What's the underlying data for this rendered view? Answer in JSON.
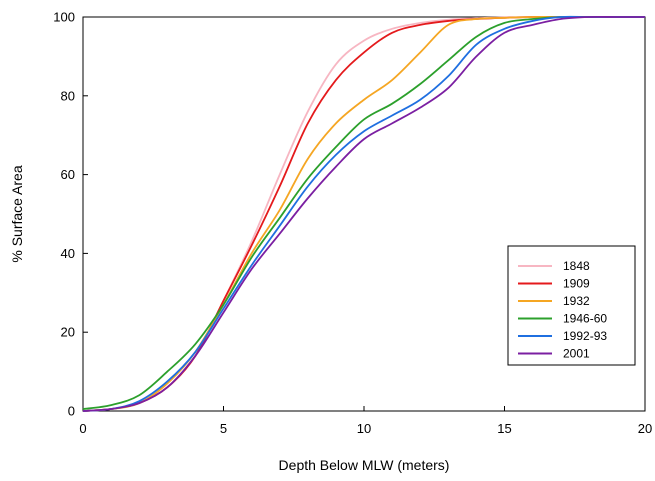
{
  "chart_data": {
    "type": "line",
    "title": "",
    "xlabel": "Depth Below MLW (meters)",
    "ylabel": "% Surface Area",
    "xlim": [
      0,
      20
    ],
    "ylim": [
      0,
      100
    ],
    "xticks": [
      0,
      5,
      10,
      15,
      20
    ],
    "yticks": [
      0,
      20,
      40,
      60,
      80,
      100
    ],
    "grid": false,
    "legend_position": "bottom-right",
    "series": [
      {
        "name": "1848",
        "color": "#f7b6c2",
        "x": [
          0,
          1,
          2,
          3,
          4,
          5,
          6,
          7,
          8,
          9,
          10,
          11,
          12,
          13,
          14,
          15,
          16,
          17,
          18,
          19,
          20
        ],
        "y": [
          0,
          0.5,
          2,
          6,
          14,
          28,
          43,
          60,
          76,
          88,
          94,
          97,
          98.5,
          99.3,
          99.7,
          99.9,
          100,
          100,
          100,
          100,
          100
        ]
      },
      {
        "name": "1909",
        "color": "#e41a1c",
        "x": [
          0,
          1,
          2,
          3,
          4,
          5,
          6,
          7,
          8,
          9,
          10,
          11,
          12,
          13,
          14,
          15,
          16,
          17,
          18,
          19,
          20
        ],
        "y": [
          0,
          0.5,
          2,
          6,
          14,
          28,
          42,
          57,
          73,
          84,
          91,
          96,
          98,
          99,
          99.5,
          99.8,
          100,
          100,
          100,
          100,
          100
        ]
      },
      {
        "name": "1932",
        "color": "#f5a623",
        "x": [
          0,
          1,
          2,
          3,
          4,
          5,
          6,
          7,
          8,
          9,
          10,
          11,
          12,
          13,
          14,
          15,
          16,
          17,
          18,
          19,
          20
        ],
        "y": [
          0,
          0.5,
          2,
          7,
          15,
          27,
          40,
          51,
          64,
          73,
          79,
          84,
          91,
          98,
          99.5,
          99.8,
          100,
          100,
          100,
          100,
          100
        ]
      },
      {
        "name": "1946-60",
        "color": "#2ca02c",
        "x": [
          0,
          1,
          2,
          3,
          4,
          5,
          6,
          7,
          8,
          9,
          10,
          11,
          12,
          13,
          14,
          15,
          16,
          17,
          18,
          19,
          20
        ],
        "y": [
          0.5,
          1.5,
          4,
          10,
          17,
          27,
          39,
          49,
          59,
          67,
          74,
          78,
          83,
          89,
          95,
          98.5,
          99.5,
          100,
          100,
          100,
          100
        ]
      },
      {
        "name": "1992-93",
        "color": "#1f6fe0",
        "x": [
          0,
          1,
          2,
          3,
          4,
          5,
          6,
          7,
          8,
          9,
          10,
          11,
          12,
          13,
          14,
          15,
          16,
          17,
          18,
          19,
          20
        ],
        "y": [
          0,
          0.5,
          2.5,
          7.5,
          15,
          26,
          37,
          47,
          57,
          65,
          71,
          75,
          79,
          85,
          93,
          97,
          99,
          100,
          100,
          100,
          100
        ]
      },
      {
        "name": "2001",
        "color": "#7b1fa2",
        "x": [
          0,
          1,
          2,
          3,
          4,
          5,
          6,
          7,
          8,
          9,
          10,
          11,
          12,
          13,
          14,
          15,
          16,
          17,
          18,
          19,
          20
        ],
        "y": [
          0,
          0.5,
          2,
          6,
          14,
          25,
          36,
          45,
          54,
          62,
          69,
          73,
          77,
          82,
          90,
          96,
          98,
          99.5,
          100,
          100,
          100
        ]
      }
    ]
  }
}
